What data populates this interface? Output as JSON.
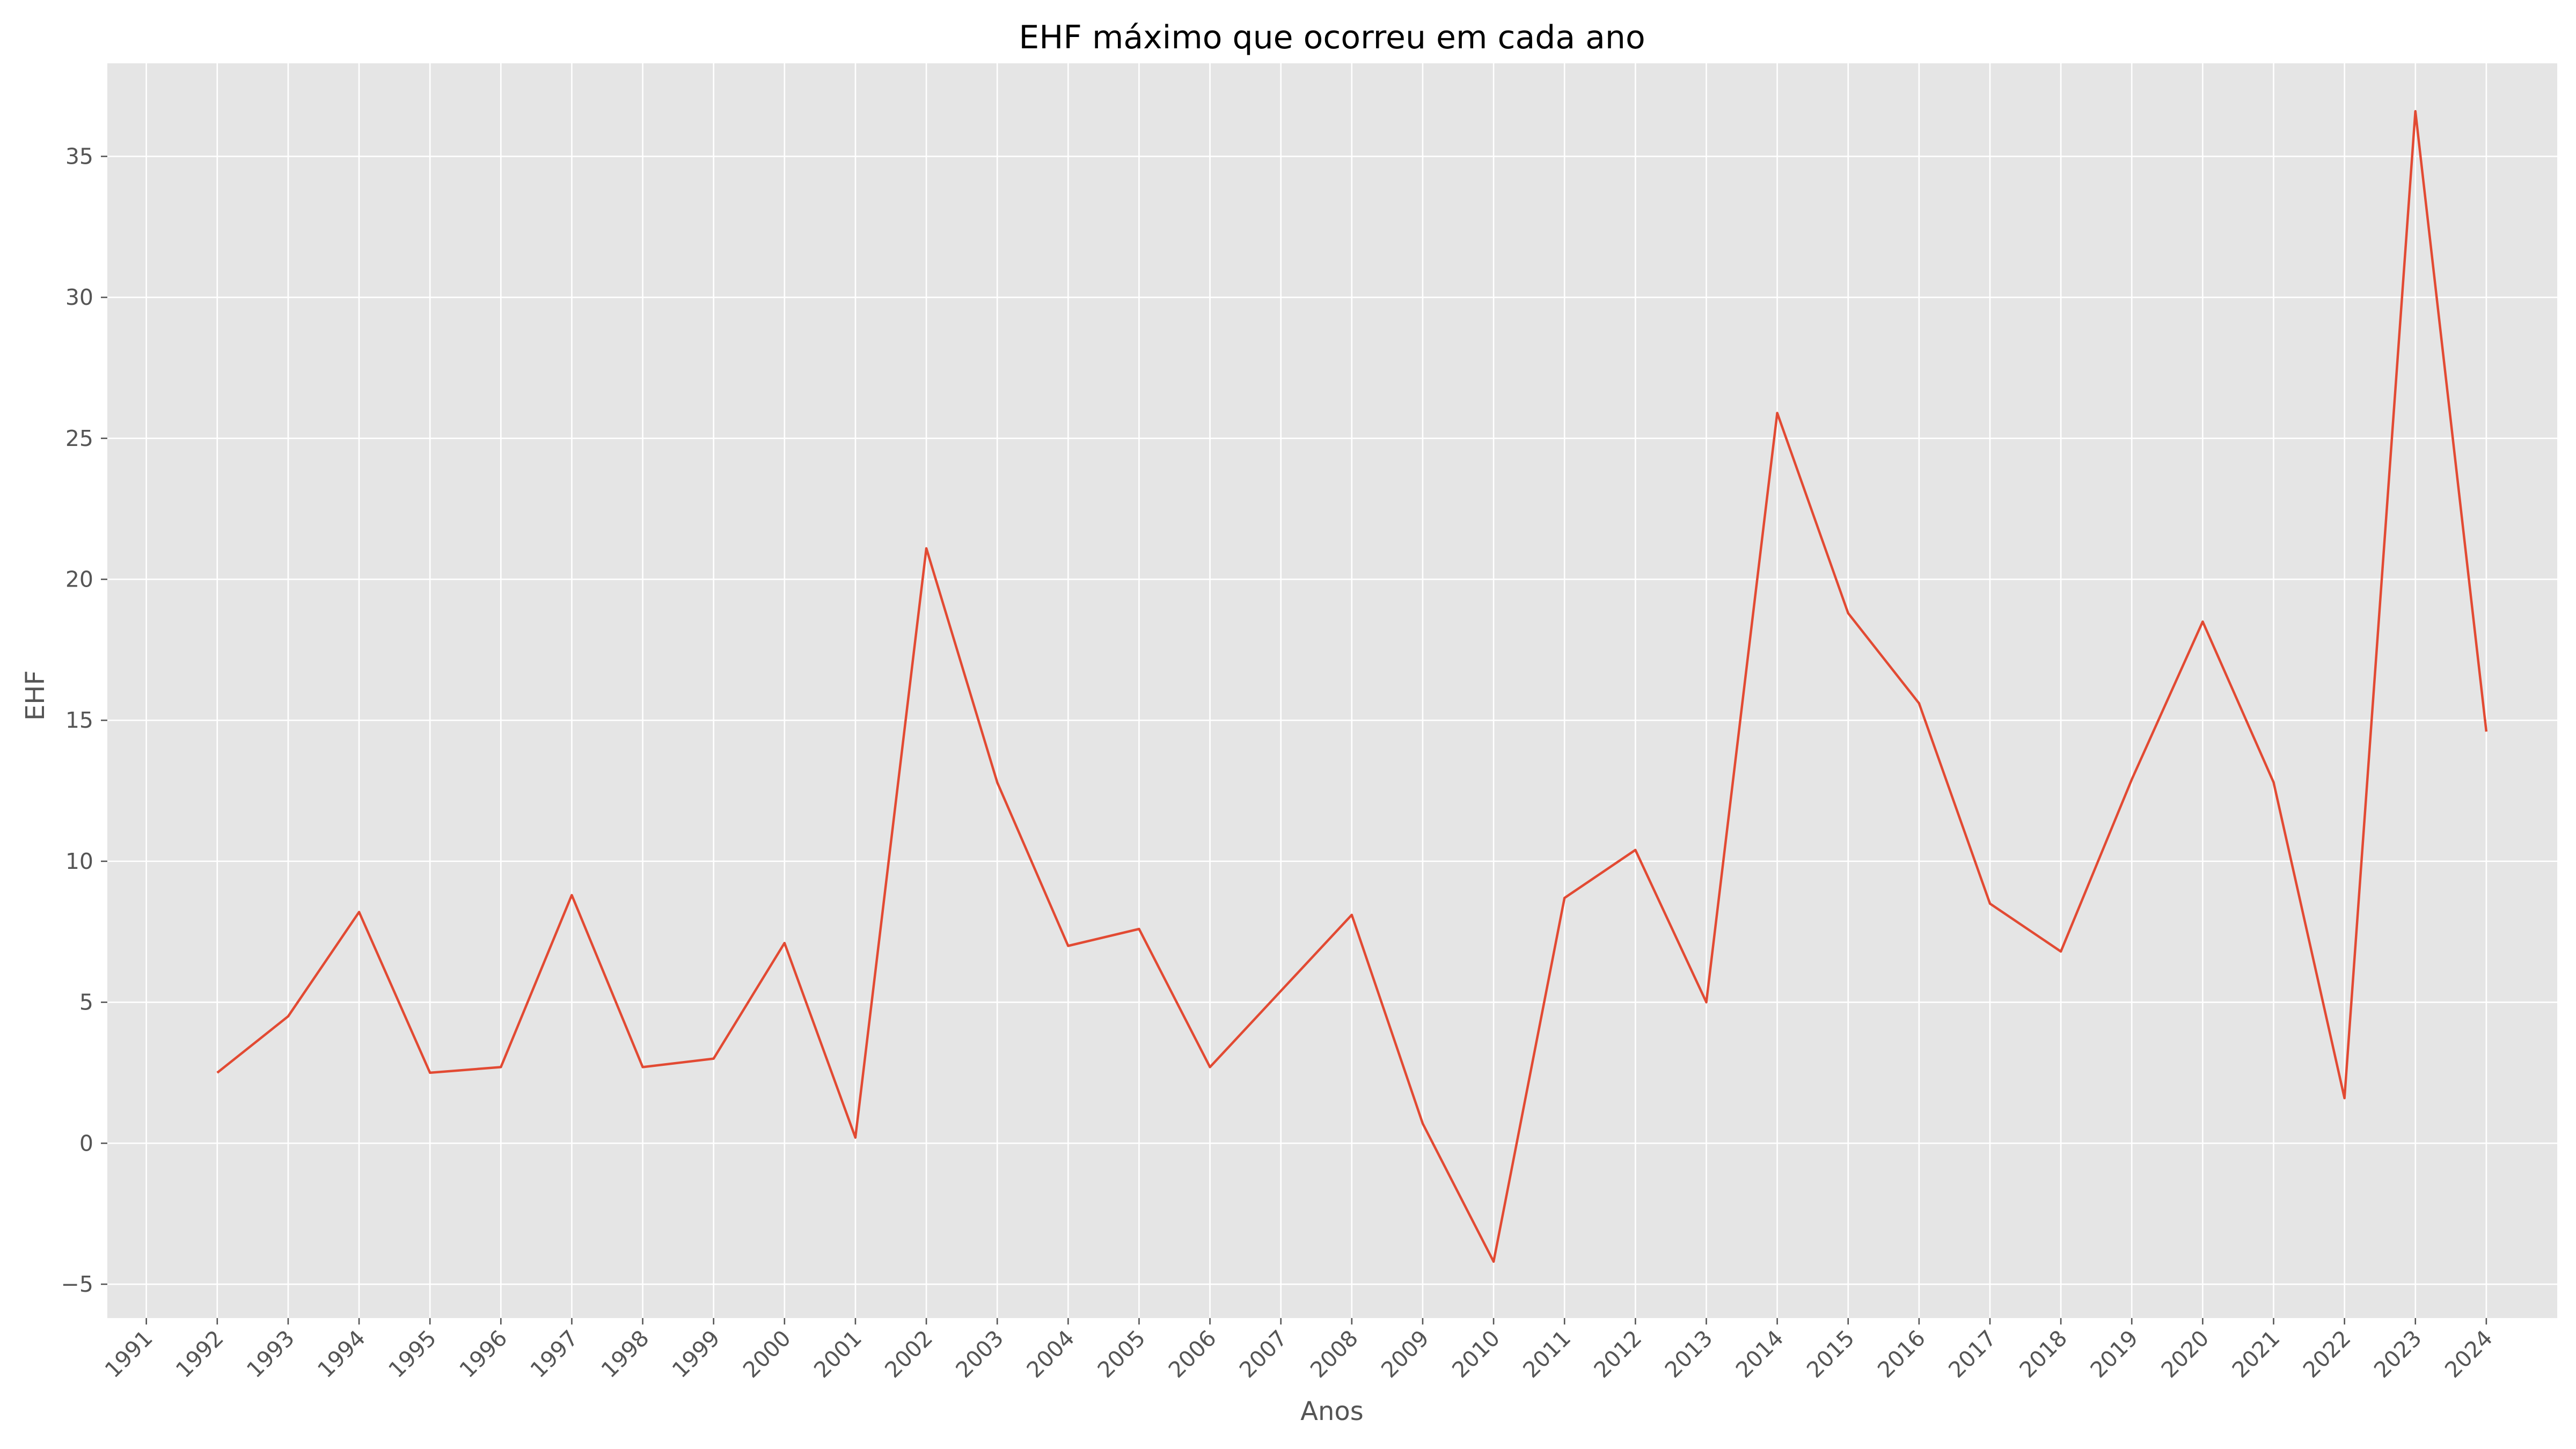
{
  "chart_data": {
    "type": "line",
    "title": "EHF máximo que ocorreu em cada ano",
    "xlabel": "Anos",
    "ylabel": "EHF",
    "x_ticks": [
      "1991",
      "1992",
      "1993",
      "1994",
      "1995",
      "1996",
      "1997",
      "1998",
      "1999",
      "2000",
      "2001",
      "2002",
      "2003",
      "2004",
      "2005",
      "2006",
      "2007",
      "2008",
      "2009",
      "2010",
      "2011",
      "2012",
      "2013",
      "2014",
      "2015",
      "2016",
      "2017",
      "2018",
      "2019",
      "2020",
      "2021",
      "2022",
      "2023",
      "2024"
    ],
    "y_ticks": [
      -5,
      0,
      5,
      10,
      15,
      20,
      25,
      30,
      35
    ],
    "y_tick_labels": [
      "−5",
      "0",
      "5",
      "10",
      "15",
      "20",
      "25",
      "30",
      "35"
    ],
    "xlim": [
      1990.45,
      2025.0
    ],
    "ylim": [
      -6.2,
      38.3
    ],
    "grid": true,
    "line_color": "#E24A33",
    "background_color": "#E5E5E5",
    "series": [
      {
        "x": [
          1992,
          1993,
          1994,
          1995,
          1996,
          1997,
          1998,
          1999,
          2000,
          2001,
          2002,
          2003,
          2004,
          2005,
          2006,
          2007,
          2008,
          2009,
          2010,
          2011,
          2012,
          2013,
          2014,
          2015,
          2016,
          2017,
          2018,
          2019,
          2020,
          2021,
          2022,
          2023,
          2024
        ],
        "values": [
          2.5,
          4.5,
          8.2,
          2.5,
          2.7,
          8.8,
          2.7,
          3.0,
          7.1,
          0.2,
          21.1,
          12.8,
          7.0,
          7.6,
          2.7,
          5.4,
          8.1,
          0.7,
          -4.2,
          8.7,
          10.4,
          5.0,
          25.9,
          18.8,
          15.6,
          8.5,
          6.8,
          12.9,
          18.5,
          12.8,
          1.6,
          36.6,
          14.6
        ]
      }
    ]
  }
}
